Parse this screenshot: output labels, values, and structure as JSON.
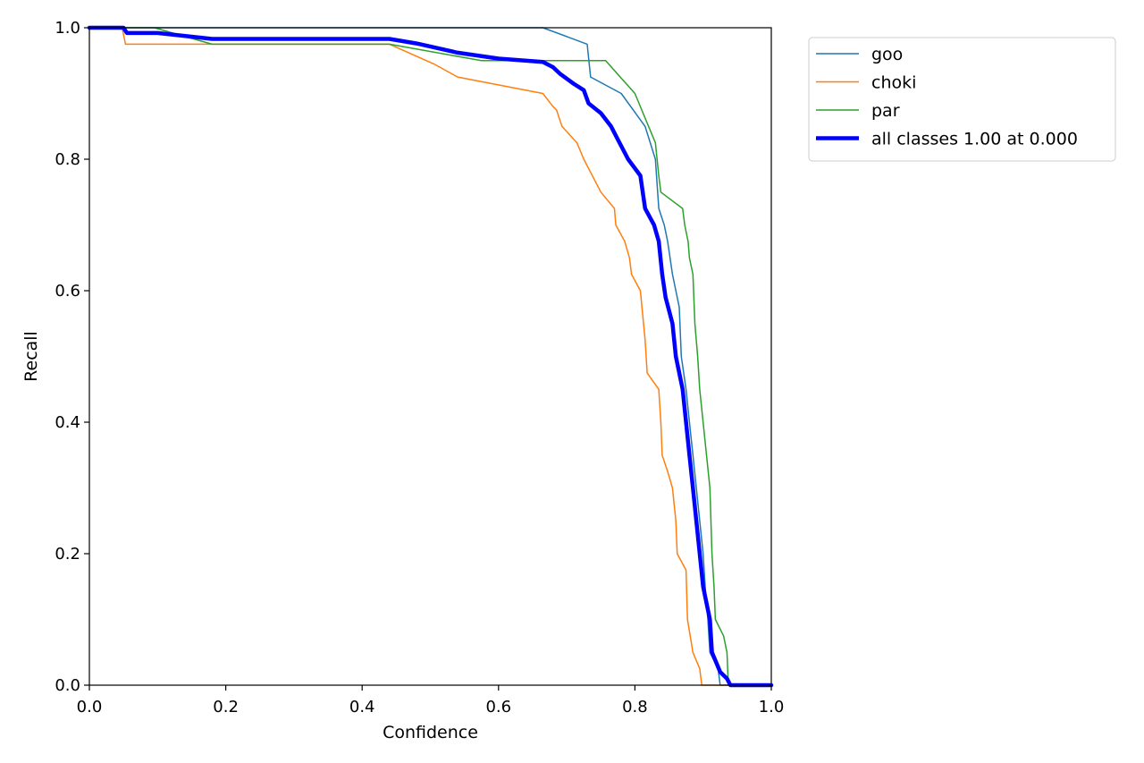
{
  "chart_data": {
    "type": "line",
    "title": "",
    "xlabel": "Confidence",
    "ylabel": "Recall",
    "xlim": [
      0,
      1
    ],
    "ylim": [
      0,
      1
    ],
    "xticks": [
      "0.0",
      "0.2",
      "0.4",
      "0.6",
      "0.8",
      "1.0"
    ],
    "yticks": [
      "0.0",
      "0.2",
      "0.4",
      "0.6",
      "0.8",
      "1.0"
    ],
    "grid": false,
    "legend_position": "outside-top-right",
    "series": [
      {
        "name": "goo",
        "color": "#1f77b4",
        "line_width": "thin",
        "points": [
          [
            0.0,
            1.0
          ],
          [
            0.665,
            1.0
          ],
          [
            0.73,
            0.975
          ],
          [
            0.735,
            0.925
          ],
          [
            0.78,
            0.9
          ],
          [
            0.815,
            0.85
          ],
          [
            0.83,
            0.8
          ],
          [
            0.835,
            0.725
          ],
          [
            0.843,
            0.7
          ],
          [
            0.848,
            0.675
          ],
          [
            0.855,
            0.625
          ],
          [
            0.865,
            0.575
          ],
          [
            0.868,
            0.5
          ],
          [
            0.875,
            0.45
          ],
          [
            0.88,
            0.4
          ],
          [
            0.885,
            0.35
          ],
          [
            0.89,
            0.3
          ],
          [
            0.895,
            0.25
          ],
          [
            0.9,
            0.2
          ],
          [
            0.903,
            0.15
          ],
          [
            0.907,
            0.1
          ],
          [
            0.91,
            0.05
          ],
          [
            0.922,
            0.025
          ],
          [
            0.925,
            0.0
          ],
          [
            1.0,
            0.0
          ]
        ]
      },
      {
        "name": "choki",
        "color": "#ff7f0e",
        "line_width": "thin",
        "points": [
          [
            0.0,
            1.0
          ],
          [
            0.048,
            1.0
          ],
          [
            0.053,
            0.975
          ],
          [
            0.44,
            0.975
          ],
          [
            0.505,
            0.945
          ],
          [
            0.54,
            0.925
          ],
          [
            0.665,
            0.9
          ],
          [
            0.68,
            0.88
          ],
          [
            0.685,
            0.875
          ],
          [
            0.693,
            0.85
          ],
          [
            0.715,
            0.825
          ],
          [
            0.725,
            0.8
          ],
          [
            0.75,
            0.75
          ],
          [
            0.77,
            0.725
          ],
          [
            0.772,
            0.7
          ],
          [
            0.785,
            0.675
          ],
          [
            0.792,
            0.65
          ],
          [
            0.795,
            0.625
          ],
          [
            0.808,
            0.6
          ],
          [
            0.815,
            0.525
          ],
          [
            0.818,
            0.475
          ],
          [
            0.835,
            0.45
          ],
          [
            0.838,
            0.4
          ],
          [
            0.84,
            0.35
          ],
          [
            0.848,
            0.325
          ],
          [
            0.855,
            0.3
          ],
          [
            0.86,
            0.25
          ],
          [
            0.862,
            0.2
          ],
          [
            0.875,
            0.175
          ],
          [
            0.877,
            0.1
          ],
          [
            0.885,
            0.05
          ],
          [
            0.895,
            0.025
          ],
          [
            0.898,
            0.0
          ],
          [
            1.0,
            0.0
          ]
        ]
      },
      {
        "name": "par",
        "color": "#2ca02c",
        "line_width": "thin",
        "points": [
          [
            0.0,
            1.0
          ],
          [
            0.095,
            1.0
          ],
          [
            0.18,
            0.975
          ],
          [
            0.44,
            0.975
          ],
          [
            0.575,
            0.95
          ],
          [
            0.757,
            0.95
          ],
          [
            0.8,
            0.9
          ],
          [
            0.81,
            0.875
          ],
          [
            0.83,
            0.825
          ],
          [
            0.835,
            0.775
          ],
          [
            0.838,
            0.75
          ],
          [
            0.87,
            0.725
          ],
          [
            0.873,
            0.7
          ],
          [
            0.878,
            0.675
          ],
          [
            0.88,
            0.65
          ],
          [
            0.885,
            0.625
          ],
          [
            0.888,
            0.55
          ],
          [
            0.892,
            0.5
          ],
          [
            0.895,
            0.45
          ],
          [
            0.9,
            0.4
          ],
          [
            0.905,
            0.35
          ],
          [
            0.91,
            0.3
          ],
          [
            0.913,
            0.2
          ],
          [
            0.916,
            0.15
          ],
          [
            0.918,
            0.1
          ],
          [
            0.93,
            0.075
          ],
          [
            0.935,
            0.05
          ],
          [
            0.937,
            0.0
          ],
          [
            1.0,
            0.0
          ]
        ]
      },
      {
        "name": "all classes 1.00 at 0.000",
        "color": "#0000ff",
        "line_width": "thick",
        "points": [
          [
            0.0,
            1.0
          ],
          [
            0.05,
            1.0
          ],
          [
            0.055,
            0.992
          ],
          [
            0.1,
            0.992
          ],
          [
            0.18,
            0.983
          ],
          [
            0.44,
            0.983
          ],
          [
            0.48,
            0.976
          ],
          [
            0.54,
            0.962
          ],
          [
            0.6,
            0.953
          ],
          [
            0.665,
            0.948
          ],
          [
            0.68,
            0.94
          ],
          [
            0.69,
            0.93
          ],
          [
            0.71,
            0.915
          ],
          [
            0.725,
            0.905
          ],
          [
            0.732,
            0.885
          ],
          [
            0.75,
            0.87
          ],
          [
            0.765,
            0.85
          ],
          [
            0.775,
            0.83
          ],
          [
            0.79,
            0.8
          ],
          [
            0.808,
            0.775
          ],
          [
            0.815,
            0.725
          ],
          [
            0.828,
            0.7
          ],
          [
            0.835,
            0.675
          ],
          [
            0.84,
            0.625
          ],
          [
            0.845,
            0.59
          ],
          [
            0.855,
            0.55
          ],
          [
            0.86,
            0.5
          ],
          [
            0.87,
            0.45
          ],
          [
            0.875,
            0.4
          ],
          [
            0.88,
            0.35
          ],
          [
            0.885,
            0.3
          ],
          [
            0.89,
            0.25
          ],
          [
            0.895,
            0.2
          ],
          [
            0.9,
            0.15
          ],
          [
            0.91,
            0.1
          ],
          [
            0.913,
            0.05
          ],
          [
            0.925,
            0.02
          ],
          [
            0.935,
            0.01
          ],
          [
            0.94,
            0.0
          ],
          [
            1.0,
            0.0
          ]
        ]
      }
    ]
  }
}
